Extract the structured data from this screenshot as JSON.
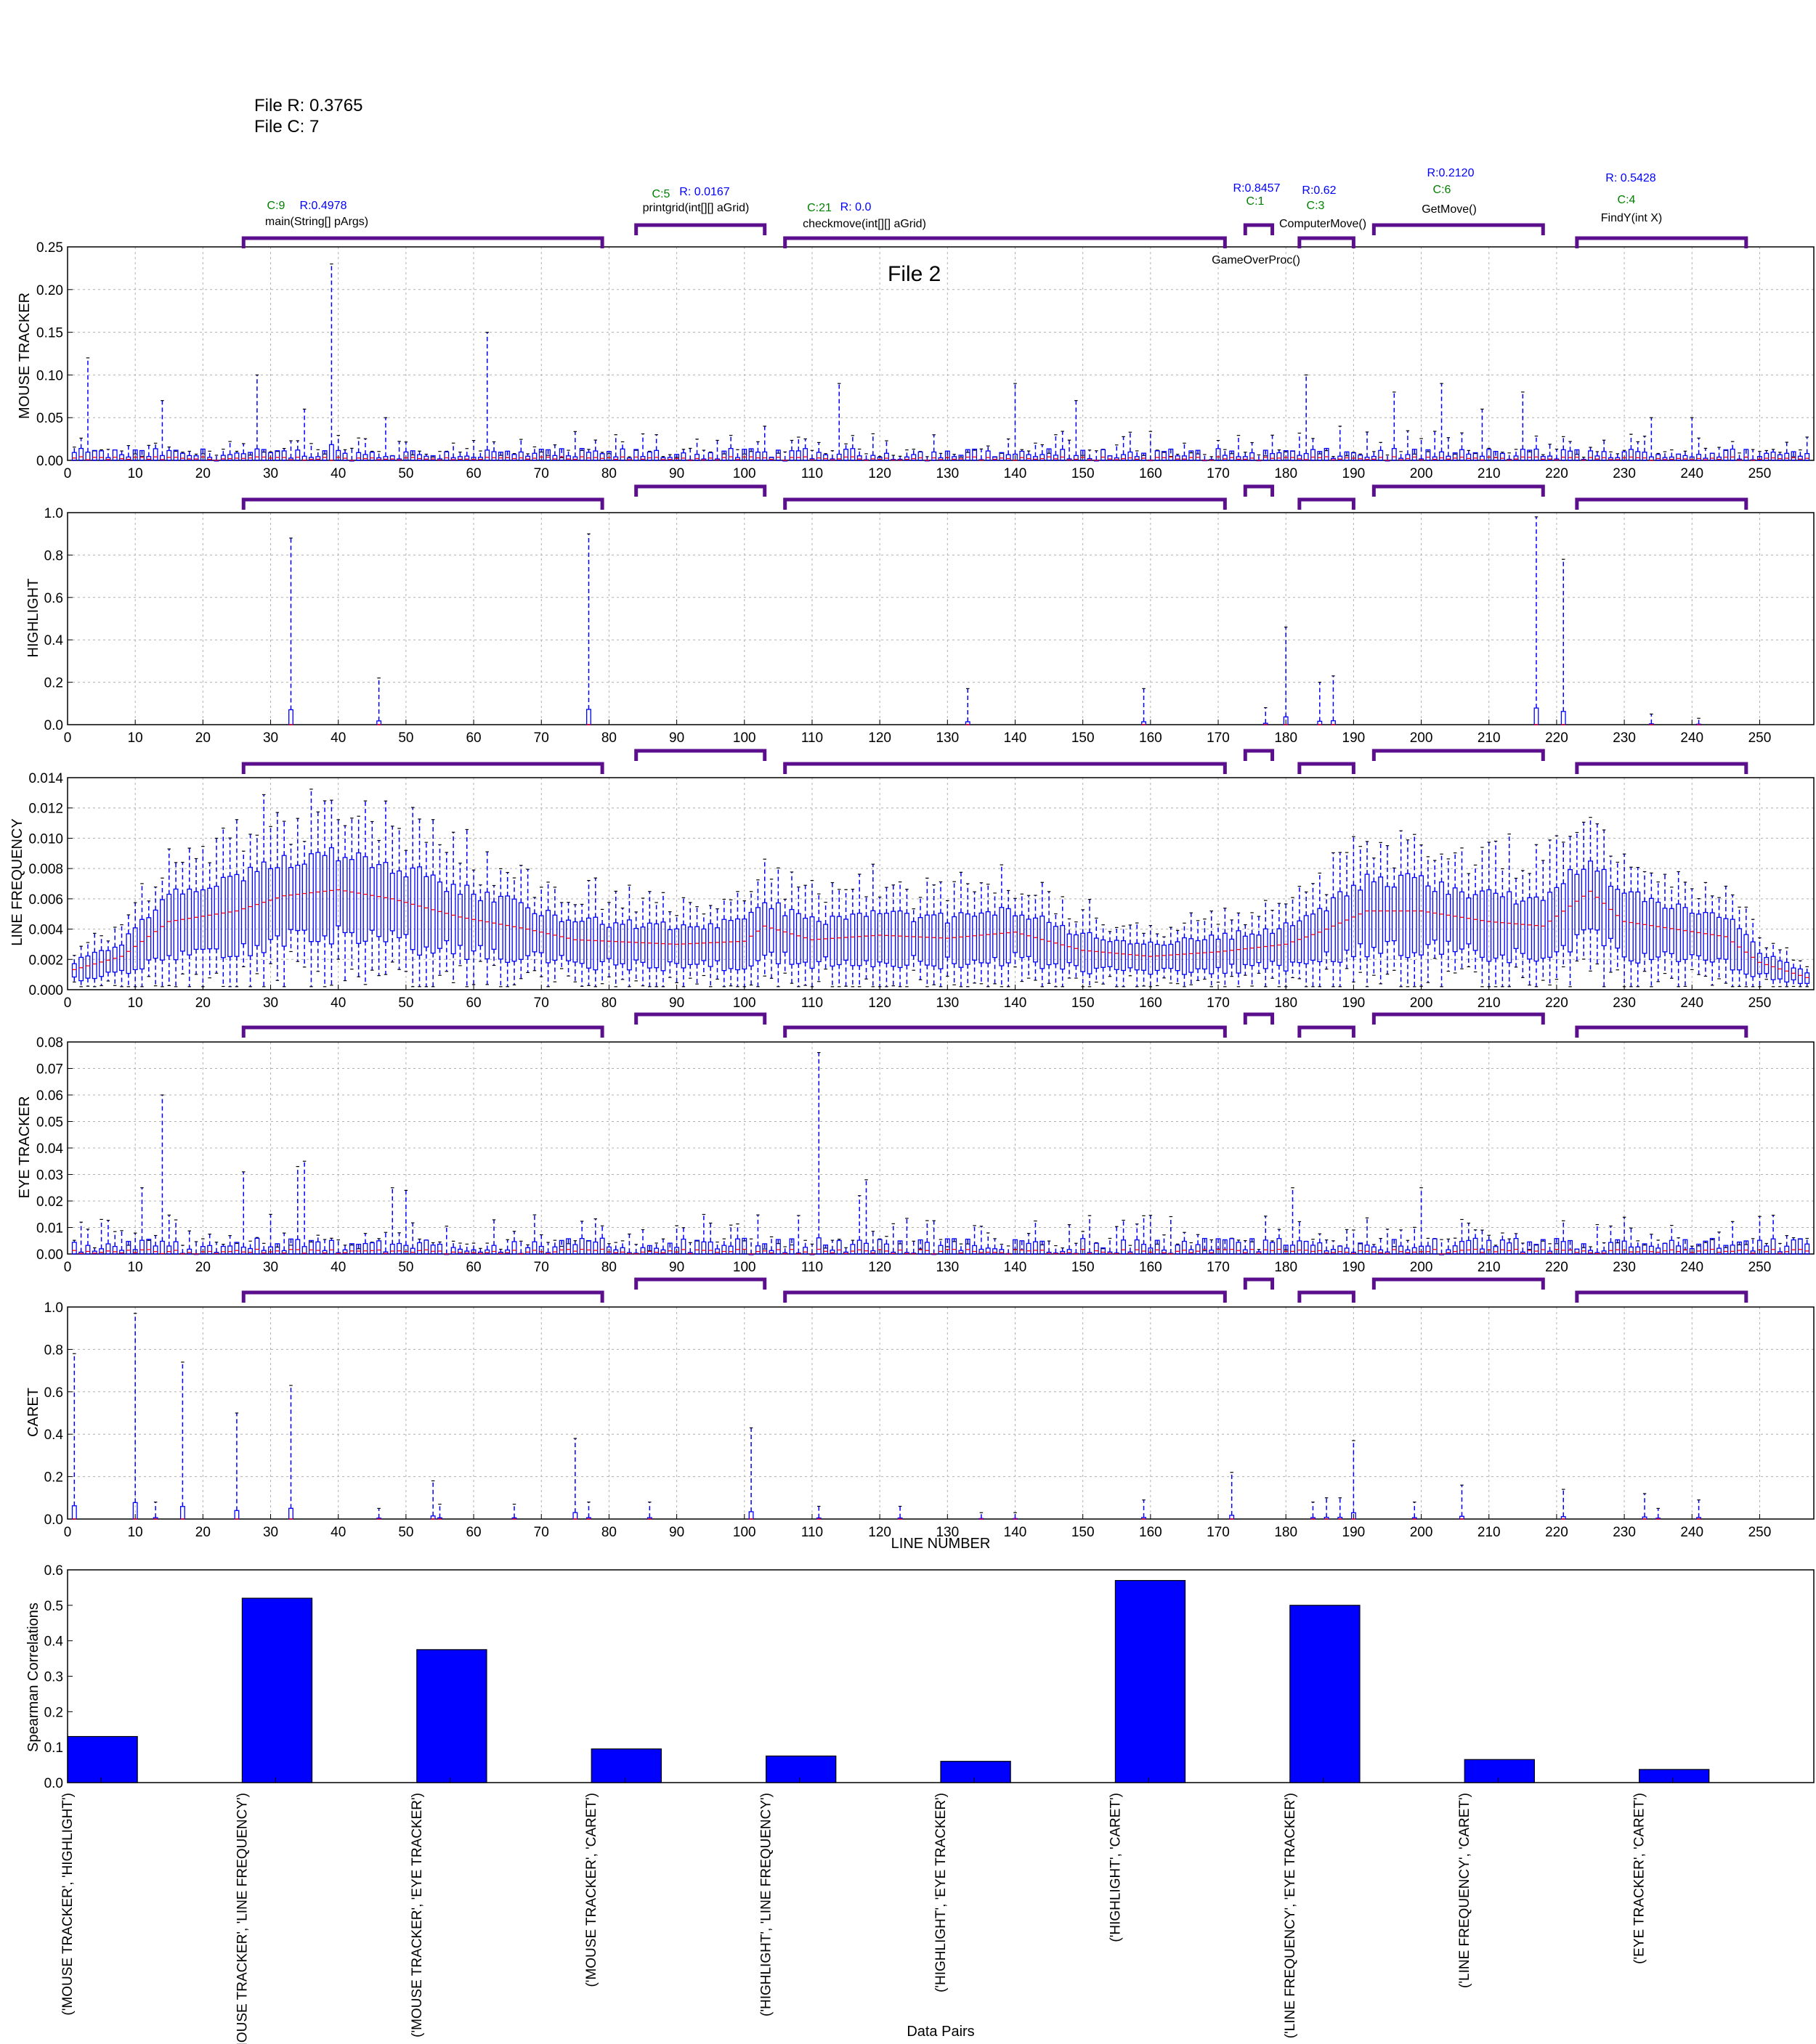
{
  "header": {
    "file_r": "File R: 0.3765",
    "file_c": "File C: 7"
  },
  "colors": {
    "box": "#0000ff",
    "median": "#ff0000",
    "bracket": "#5b0f8c",
    "c_stat": "#008000",
    "r_stat": "#0000ff",
    "bar": "#0000ff",
    "grid": "#b0b0b0"
  },
  "methods": [
    {
      "name": "main(String[] pArgs)",
      "c": "C:9",
      "r": "R:0.4978",
      "start": 26,
      "end": 79
    },
    {
      "name": "printgrid(int[][] aGrid)",
      "c": "C:5",
      "r": "R: 0.0167",
      "start": 84,
      "end": 103
    },
    {
      "name": "checkmove(int[][] aGrid)",
      "c": "C:21",
      "r": "R: 0.0",
      "start": 106,
      "end": 171
    },
    {
      "name": "GameOverProc()",
      "c": "C:1",
      "r": "R:0.8457",
      "start": 174,
      "end": 178
    },
    {
      "name": "ComputerMove()",
      "c": "C:3",
      "r": "R:0.62",
      "start": 182,
      "end": 190
    },
    {
      "name": "GetMove()",
      "c": "C:6",
      "r": "R:0.2120",
      "start": 193,
      "end": 218
    },
    {
      "name": "FindY(int X)",
      "c": "C:4",
      "r": "R: 0.5428",
      "start": 223,
      "end": 248
    }
  ],
  "chart_data": [
    {
      "type": "box",
      "title": "File 2",
      "ylabel": "MOUSE TRACKER",
      "xlim": [
        0,
        258
      ],
      "ylim": [
        0,
        0.25
      ],
      "yticks": [
        0.0,
        0.05,
        0.1,
        0.15,
        0.2,
        0.25
      ],
      "grid": true,
      "peaks": [
        [
          3,
          0.12
        ],
        [
          14,
          0.07
        ],
        [
          28,
          0.1
        ],
        [
          35,
          0.06
        ],
        [
          39,
          0.23
        ],
        [
          47,
          0.05
        ],
        [
          62,
          0.15
        ],
        [
          103,
          0.04
        ],
        [
          114,
          0.09
        ],
        [
          140,
          0.09
        ],
        [
          149,
          0.07
        ],
        [
          183,
          0.1
        ],
        [
          188,
          0.04
        ],
        [
          196,
          0.08
        ],
        [
          203,
          0.09
        ],
        [
          209,
          0.06
        ],
        [
          215,
          0.08
        ],
        [
          234,
          0.05
        ],
        [
          240,
          0.05
        ]
      ],
      "baseline_max": 0.035
    },
    {
      "type": "box",
      "ylabel": "HIGHLIGHT",
      "xlim": [
        0,
        258
      ],
      "ylim": [
        0,
        1.0
      ],
      "yticks": [
        0.0,
        0.2,
        0.4,
        0.6,
        0.8,
        1.0
      ],
      "grid": true,
      "peaks": [
        [
          33,
          0.88
        ],
        [
          46,
          0.22
        ],
        [
          77,
          0.9
        ],
        [
          133,
          0.17
        ],
        [
          159,
          0.17
        ],
        [
          177,
          0.08
        ],
        [
          180,
          0.46
        ],
        [
          185,
          0.2
        ],
        [
          187,
          0.23
        ],
        [
          217,
          0.98
        ],
        [
          221,
          0.78
        ],
        [
          234,
          0.05
        ],
        [
          241,
          0.03
        ]
      ],
      "baseline_max": 0.0
    },
    {
      "type": "box",
      "ylabel": "LINE FREQUENCY",
      "xlim": [
        0,
        258
      ],
      "ylim": [
        0,
        0.014
      ],
      "yticks": [
        0.0,
        0.002,
        0.004,
        0.006,
        0.008,
        0.01,
        0.012,
        0.014
      ],
      "grid": true,
      "profile": [
        [
          0,
          0.0012
        ],
        [
          8,
          0.0022
        ],
        [
          15,
          0.0045
        ],
        [
          25,
          0.0052
        ],
        [
          32,
          0.0062
        ],
        [
          40,
          0.0066
        ],
        [
          48,
          0.006
        ],
        [
          58,
          0.0048
        ],
        [
          68,
          0.004
        ],
        [
          75,
          0.0033
        ],
        [
          90,
          0.003
        ],
        [
          100,
          0.0032
        ],
        [
          103,
          0.0042
        ],
        [
          110,
          0.0033
        ],
        [
          120,
          0.0036
        ],
        [
          130,
          0.0034
        ],
        [
          140,
          0.0038
        ],
        [
          150,
          0.0026
        ],
        [
          160,
          0.0022
        ],
        [
          170,
          0.0025
        ],
        [
          180,
          0.003
        ],
        [
          185,
          0.0038
        ],
        [
          192,
          0.0052
        ],
        [
          200,
          0.0052
        ],
        [
          210,
          0.0045
        ],
        [
          218,
          0.0042
        ],
        [
          225,
          0.0065
        ],
        [
          230,
          0.0045
        ],
        [
          245,
          0.0035
        ],
        [
          250,
          0.0018
        ],
        [
          257,
          0.0008
        ]
      ]
    },
    {
      "type": "box",
      "ylabel": "EYE TRACKER",
      "xlim": [
        0,
        258
      ],
      "ylim": [
        0,
        0.08
      ],
      "yticks": [
        0.0,
        0.01,
        0.02,
        0.03,
        0.04,
        0.05,
        0.06,
        0.07,
        0.08
      ],
      "grid": true,
      "peaks": [
        [
          11,
          0.025
        ],
        [
          14,
          0.06
        ],
        [
          26,
          0.031
        ],
        [
          34,
          0.033
        ],
        [
          35,
          0.035
        ],
        [
          48,
          0.025
        ],
        [
          50,
          0.024
        ],
        [
          111,
          0.076
        ],
        [
          117,
          0.022
        ],
        [
          118,
          0.028
        ],
        [
          181,
          0.025
        ],
        [
          200,
          0.025
        ]
      ],
      "baseline_max": 0.015
    },
    {
      "type": "box",
      "ylabel": "CARET",
      "xlabel": "LINE NUMBER",
      "xlim": [
        0,
        258
      ],
      "ylim": [
        0,
        1.0
      ],
      "yticks": [
        0.0,
        0.2,
        0.4,
        0.6,
        0.8,
        1.0
      ],
      "xticks": [
        0,
        10,
        20,
        30,
        40,
        50,
        60,
        70,
        80,
        90,
        100,
        110,
        120,
        130,
        140,
        150,
        160,
        170,
        180,
        190,
        200,
        210,
        220,
        230,
        240,
        250
      ],
      "grid": true,
      "peaks": [
        [
          1,
          0.78
        ],
        [
          10,
          0.97
        ],
        [
          13,
          0.08
        ],
        [
          17,
          0.74
        ],
        [
          25,
          0.5
        ],
        [
          33,
          0.63
        ],
        [
          46,
          0.05
        ],
        [
          54,
          0.18
        ],
        [
          55,
          0.07
        ],
        [
          66,
          0.07
        ],
        [
          75,
          0.38
        ],
        [
          77,
          0.08
        ],
        [
          86,
          0.08
        ],
        [
          101,
          0.43
        ],
        [
          111,
          0.06
        ],
        [
          123,
          0.06
        ],
        [
          135,
          0.03
        ],
        [
          140,
          0.03
        ],
        [
          159,
          0.09
        ],
        [
          172,
          0.22
        ],
        [
          184,
          0.08
        ],
        [
          186,
          0.1
        ],
        [
          188,
          0.1
        ],
        [
          190,
          0.37
        ],
        [
          199,
          0.08
        ],
        [
          206,
          0.16
        ],
        [
          221,
          0.14
        ],
        [
          233,
          0.12
        ],
        [
          235,
          0.05
        ],
        [
          241,
          0.09
        ]
      ]
    },
    {
      "type": "bar",
      "ylabel": "Spearman Correlations",
      "xlabel": "Data Pairs",
      "ylim": [
        0,
        0.6
      ],
      "yticks": [
        0.0,
        0.1,
        0.2,
        0.3,
        0.4,
        0.5,
        0.6
      ],
      "grid": false,
      "categories": [
        "('MOUSE TRACKER', 'HIGHLIGHT')",
        "('MOUSE TRACKER', 'LINE FREQUENCY')",
        "('MOUSE TRACKER', 'EYE TRACKER')",
        "('MOUSE TRACKER', 'CARET')",
        "('HIGHLIGHT', 'LINE FREQUENCY')",
        "('HIGHLIGHT', 'EYE TRACKER')",
        "('HIGHLIGHT', 'CARET')",
        "('LINE FREQUENCY', 'EYE TRACKER')",
        "('LINE FREQUENCY', 'CARET')",
        "('EYE TRACKER', 'CARET')"
      ],
      "values": [
        0.13,
        0.52,
        0.375,
        0.095,
        0.075,
        0.06,
        0.57,
        0.5,
        0.065,
        0.037
      ]
    }
  ]
}
